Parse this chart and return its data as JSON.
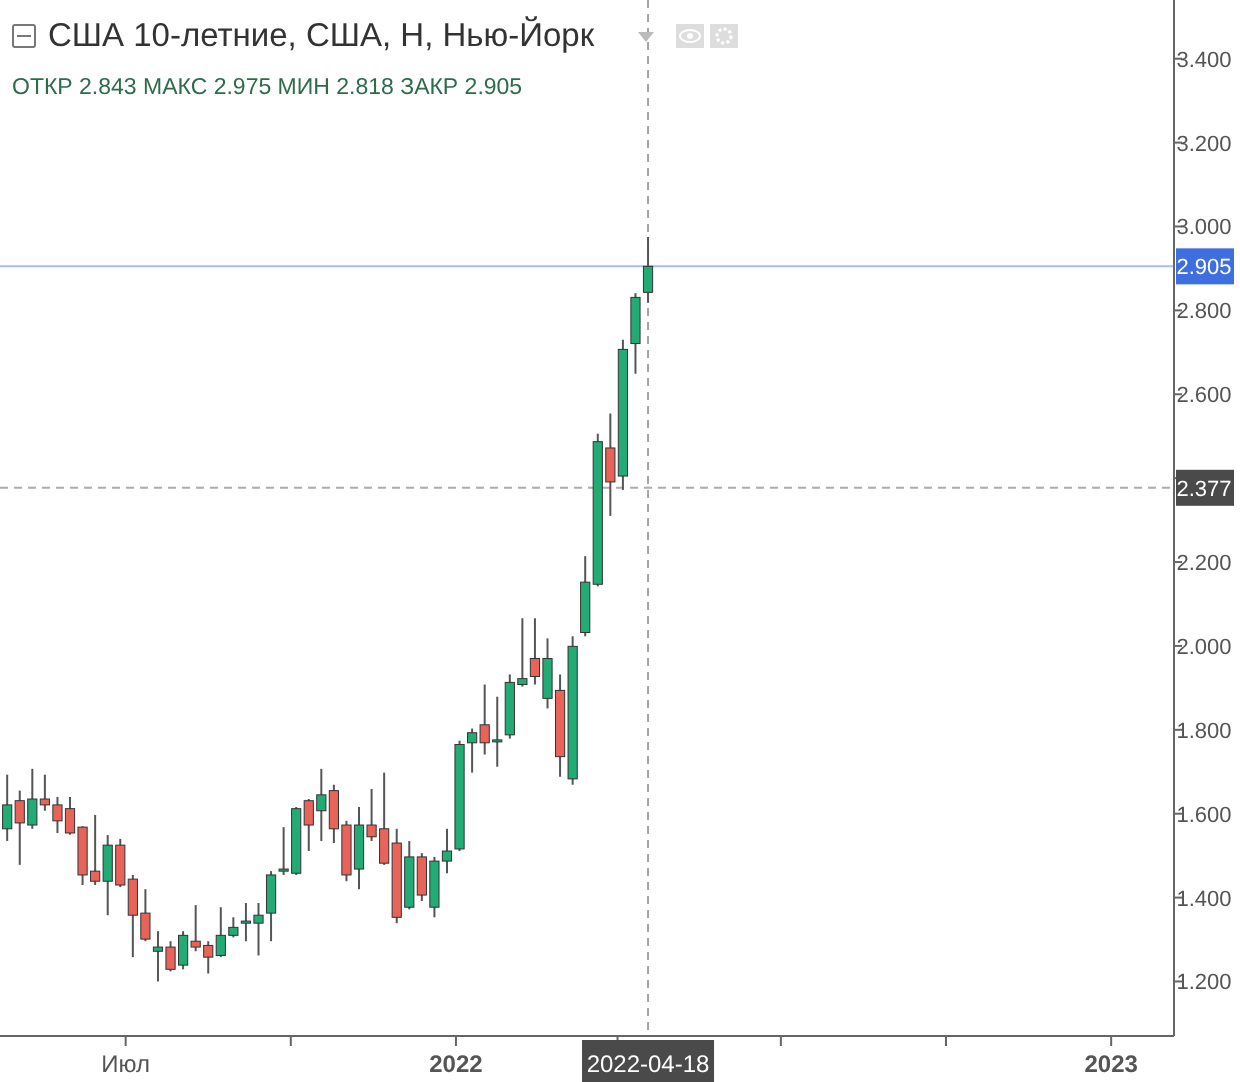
{
  "chart_data": {
    "type": "candlestick",
    "title": "США 10-летние, США, Н, Нью-Йорк",
    "annotations": [
      "ОТКР 2.843  МАКС 2.975  МИН 2.818  ЗАКР 2.905"
    ],
    "x": [
      "2021-04-26",
      "2021-05-03",
      "2021-05-10",
      "2021-05-17",
      "2021-05-24",
      "2021-05-31",
      "2021-06-07",
      "2021-06-14",
      "2021-06-21",
      "2021-06-28",
      "2021-07-05",
      "2021-07-12",
      "2021-07-19",
      "2021-07-26",
      "2021-08-02",
      "2021-08-09",
      "2021-08-16",
      "2021-08-23",
      "2021-08-30",
      "2021-09-06",
      "2021-09-13",
      "2021-09-20",
      "2021-09-27",
      "2021-10-04",
      "2021-10-11",
      "2021-10-18",
      "2021-10-25",
      "2021-11-01",
      "2021-11-08",
      "2021-11-15",
      "2021-11-22",
      "2021-11-29",
      "2021-12-06",
      "2021-12-13",
      "2021-12-20",
      "2021-12-27",
      "2022-01-03",
      "2022-01-10",
      "2022-01-17",
      "2022-01-24",
      "2022-01-31",
      "2022-02-07",
      "2022-02-14",
      "2022-02-21",
      "2022-02-28",
      "2022-03-07",
      "2022-03-14",
      "2022-03-21",
      "2022-03-28",
      "2022-04-04",
      "2022-04-11",
      "2022-04-18"
    ],
    "ohlc": [
      [
        1.564,
        1.693,
        1.535,
        1.621
      ],
      [
        1.631,
        1.655,
        1.478,
        1.578
      ],
      [
        1.573,
        1.707,
        1.564,
        1.635
      ],
      [
        1.635,
        1.693,
        1.607,
        1.621
      ],
      [
        1.621,
        1.64,
        1.554,
        1.583
      ],
      [
        1.612,
        1.64,
        1.55,
        1.554
      ],
      [
        1.568,
        1.57,
        1.43,
        1.454
      ],
      [
        1.463,
        1.597,
        1.43,
        1.439
      ],
      [
        1.439,
        1.549,
        1.358,
        1.525
      ],
      [
        1.525,
        1.54,
        1.425,
        1.43
      ],
      [
        1.444,
        1.454,
        1.258,
        1.358
      ],
      [
        1.363,
        1.42,
        1.296,
        1.301
      ],
      [
        1.272,
        1.32,
        1.2,
        1.282
      ],
      [
        1.282,
        1.296,
        1.224,
        1.229
      ],
      [
        1.239,
        1.32,
        1.229,
        1.31
      ],
      [
        1.296,
        1.382,
        1.272,
        1.282
      ],
      [
        1.286,
        1.296,
        1.219,
        1.258
      ],
      [
        1.262,
        1.377,
        1.258,
        1.31
      ],
      [
        1.31,
        1.353,
        1.305,
        1.329
      ],
      [
        1.339,
        1.387,
        1.296,
        1.344
      ],
      [
        1.339,
        1.387,
        1.262,
        1.358
      ],
      [
        1.363,
        1.463,
        1.296,
        1.454
      ],
      [
        1.463,
        1.568,
        1.454,
        1.468
      ],
      [
        1.458,
        1.616,
        1.454,
        1.612
      ],
      [
        1.631,
        1.635,
        1.511,
        1.573
      ],
      [
        1.607,
        1.707,
        1.535,
        1.645
      ],
      [
        1.655,
        1.669,
        1.53,
        1.564
      ],
      [
        1.573,
        1.583,
        1.439,
        1.454
      ],
      [
        1.468,
        1.616,
        1.42,
        1.573
      ],
      [
        1.573,
        1.659,
        1.535,
        1.545
      ],
      [
        1.564,
        1.698,
        1.478,
        1.482
      ],
      [
        1.53,
        1.564,
        1.339,
        1.353
      ],
      [
        1.377,
        1.535,
        1.372,
        1.497
      ],
      [
        1.497,
        1.506,
        1.392,
        1.406
      ],
      [
        1.377,
        1.497,
        1.353,
        1.487
      ],
      [
        1.487,
        1.564,
        1.458,
        1.511
      ],
      [
        1.516,
        1.774,
        1.511,
        1.765
      ],
      [
        1.769,
        1.803,
        1.698,
        1.793
      ],
      [
        1.812,
        1.908,
        1.741,
        1.769
      ],
      [
        1.772,
        1.879,
        1.712,
        1.776
      ],
      [
        1.788,
        1.932,
        1.779,
        1.913
      ],
      [
        1.908,
        2.066,
        1.903,
        1.922
      ],
      [
        1.97,
        2.066,
        1.908,
        1.927
      ],
      [
        1.875,
        2.018,
        1.851,
        1.97
      ],
      [
        1.894,
        1.932,
        1.688,
        1.736
      ],
      [
        1.683,
        2.023,
        1.669,
        1.999
      ],
      [
        2.032,
        2.214,
        2.023,
        2.152
      ],
      [
        2.147,
        2.506,
        2.142,
        2.487
      ],
      [
        2.472,
        2.554,
        2.31,
        2.391
      ],
      [
        2.405,
        2.73,
        2.372,
        2.707
      ],
      [
        2.721,
        2.841,
        2.649,
        2.831
      ],
      [
        2.843,
        2.975,
        2.818,
        2.905
      ]
    ],
    "colors": [
      "#22ab74",
      "#e8645a",
      "#22ab74",
      "#e8645a",
      "#e8645a",
      "#e8645a",
      "#e8645a",
      "#e8645a",
      "#22ab74",
      "#e8645a",
      "#e8645a",
      "#e8645a",
      "#22ab74",
      "#e8645a",
      "#22ab74",
      "#e8645a",
      "#e8645a",
      "#22ab74",
      "#22ab74",
      "#22ab74",
      "#22ab74",
      "#22ab74",
      "#22ab74",
      "#22ab74",
      "#e8645a",
      "#22ab74",
      "#e8645a",
      "#e8645a",
      "#22ab74",
      "#e8645a",
      "#e8645a",
      "#e8645a",
      "#22ab74",
      "#e8645a",
      "#22ab74",
      "#22ab74",
      "#22ab74",
      "#22ab74",
      "#e8645a",
      "#22ab74",
      "#22ab74",
      "#22ab74",
      "#e8645a",
      "#22ab74",
      "#e8645a",
      "#22ab74",
      "#22ab74",
      "#22ab74",
      "#e8645a",
      "#22ab74",
      "#22ab74",
      "#22ab74"
    ],
    "xlim": [
      "2021-04-22",
      "2023-02-05"
    ],
    "xticks": [
      {
        "value": "2021-07-01",
        "label": "Июл"
      },
      {
        "value": "2021-10-01",
        "label": null
      },
      {
        "value": "2022-01-01",
        "label": "2022"
      },
      {
        "value": "2022-04-01",
        "label": null
      },
      {
        "value": "2022-07-01",
        "label": null
      },
      {
        "value": "2022-10-01",
        "label": null
      },
      {
        "value": "2023-01-01",
        "label": "2023"
      }
    ],
    "ylim": [
      1.07,
      3.54
    ],
    "yticks": [
      {
        "value": 1.2,
        "label": "1.200"
      },
      {
        "value": 1.4,
        "label": "1.400"
      },
      {
        "value": 1.6,
        "label": "1.600"
      },
      {
        "value": 1.8,
        "label": "1.800"
      },
      {
        "value": 2.0,
        "label": "2.000"
      },
      {
        "value": 2.2,
        "label": "2.200"
      },
      {
        "value": 2.4,
        "label": null
      },
      {
        "value": 2.6,
        "label": "2.600"
      },
      {
        "value": 2.8,
        "label": "2.800"
      },
      {
        "value": 3.0,
        "label": "3.000"
      },
      {
        "value": 3.2,
        "label": "3.200"
      },
      {
        "value": 3.4,
        "label": "3.400"
      }
    ],
    "ref_lines": [
      {
        "axis": "y",
        "value": 2.905,
        "label": "2.905",
        "color": "#3d6fe0",
        "line_style": "solid"
      },
      {
        "axis": "y",
        "value": 2.377,
        "label": "2.377",
        "color": "#4a4a4a",
        "line_style": "dashed"
      },
      {
        "axis": "x",
        "value": "2022-04-18",
        "label": "2022-04-18",
        "color": "#4a4a4a",
        "line_style": "dashed"
      }
    ]
  }
}
